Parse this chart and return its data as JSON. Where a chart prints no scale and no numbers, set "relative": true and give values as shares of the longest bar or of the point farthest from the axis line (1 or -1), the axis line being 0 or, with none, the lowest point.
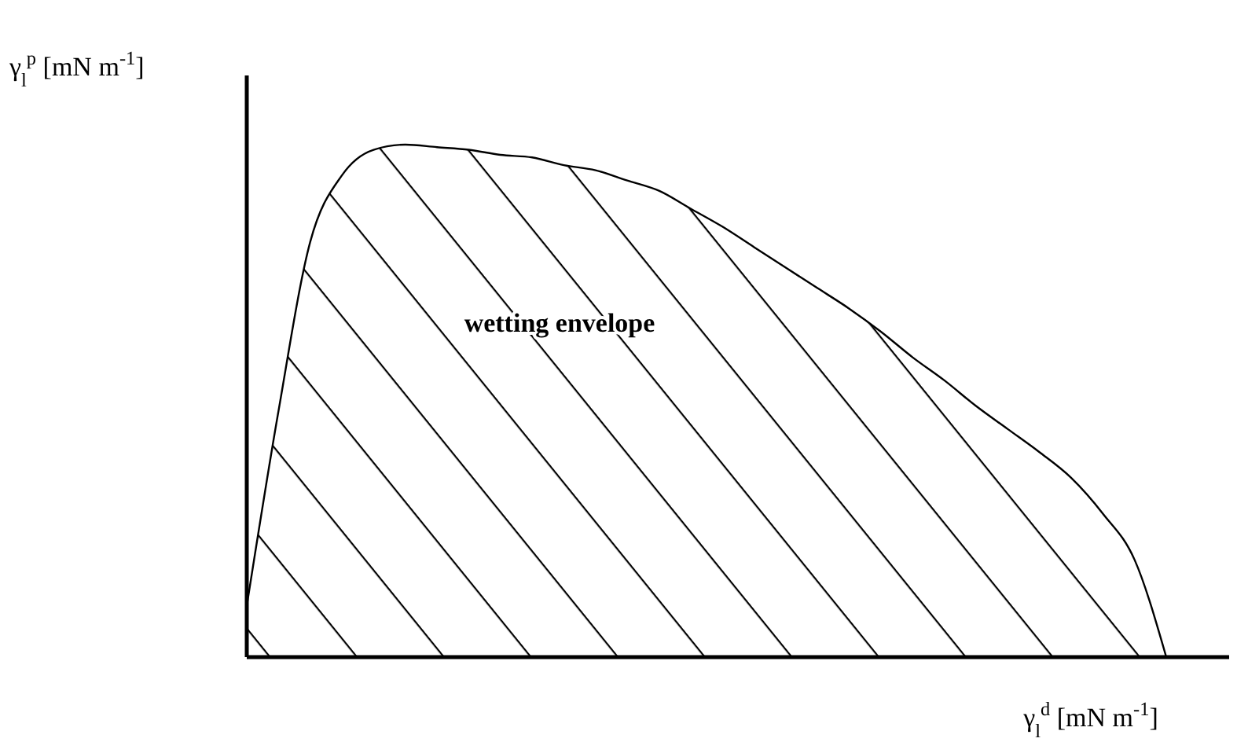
{
  "chart_data": {
    "type": "area",
    "relative": true,
    "xlabel": "γ$_{l}$$^{d}$ [mN m$^{-1}$]",
    "ylabel": "γ$_{l}$$^{p}$ [mN m$^{-1}$]",
    "annotations": [
      "wetting envelope"
    ],
    "categories": [
      null,
      null,
      null,
      null,
      null,
      null,
      null,
      null,
      null,
      null,
      null,
      null,
      null,
      null,
      null,
      null,
      null,
      null,
      null,
      null,
      null,
      null,
      null,
      null,
      null,
      null,
      null,
      null,
      null,
      null
    ],
    "series": [
      {
        "color": "#000000",
        "values": [
          0.1,
          0.48,
          0.81,
          0.94,
          0.99,
          1.0,
          0.995,
          0.99,
          0.98,
          0.975,
          0.96,
          0.95,
          0.93,
          0.91,
          0.875,
          0.84,
          0.8,
          0.76,
          0.72,
          0.68,
          0.635,
          0.585,
          0.54,
          0.49,
          0.445,
          0.4,
          0.35,
          0.28,
          0.19,
          0.0
        ]
      }
    ]
  }
}
